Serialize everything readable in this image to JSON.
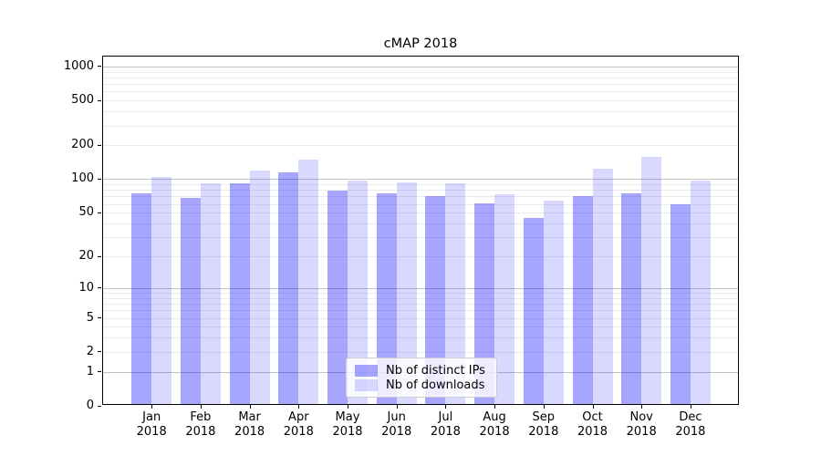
{
  "chart_data": {
    "type": "bar",
    "title": "cMAP 2018",
    "categories": [
      "Jan",
      "Feb",
      "Mar",
      "Apr",
      "May",
      "Jun",
      "Jul",
      "Aug",
      "Sep",
      "Oct",
      "Nov",
      "Dec"
    ],
    "category_year": "2018",
    "series": [
      {
        "name": "Nb of distinct IPs",
        "color": "rgba(0,0,255,0.35)",
        "values": [
          75,
          68,
          92,
          116,
          79,
          75,
          70,
          61,
          45,
          70,
          75,
          60
        ]
      },
      {
        "name": "Nb of downloads",
        "color": "rgba(0,0,255,0.15)",
        "values": [
          104,
          92,
          120,
          150,
          98,
          94,
          92,
          73,
          64,
          125,
          158,
          98
        ]
      }
    ],
    "y_axis": {
      "ticks": [
        0,
        1,
        2,
        5,
        10,
        20,
        50,
        100,
        200,
        500,
        1000
      ],
      "scale": "log1p",
      "ylim": [
        0,
        1250
      ],
      "major_grid": [
        1,
        10,
        100,
        1000
      ]
    },
    "xlabel": "",
    "ylabel": "",
    "grid": "on",
    "legend_position": "lower center"
  },
  "colors": {
    "bar_dark": "rgba(0,0,255,0.35)",
    "bar_light": "rgba(0,0,255,0.15)",
    "major_grid": "#c3c3c3",
    "minor_grid": "#ebebeb",
    "frame": "#000000",
    "text": "#000000",
    "legend_border": "#cccccc",
    "legend_bg": "rgba(255,255,255,0.8)"
  }
}
